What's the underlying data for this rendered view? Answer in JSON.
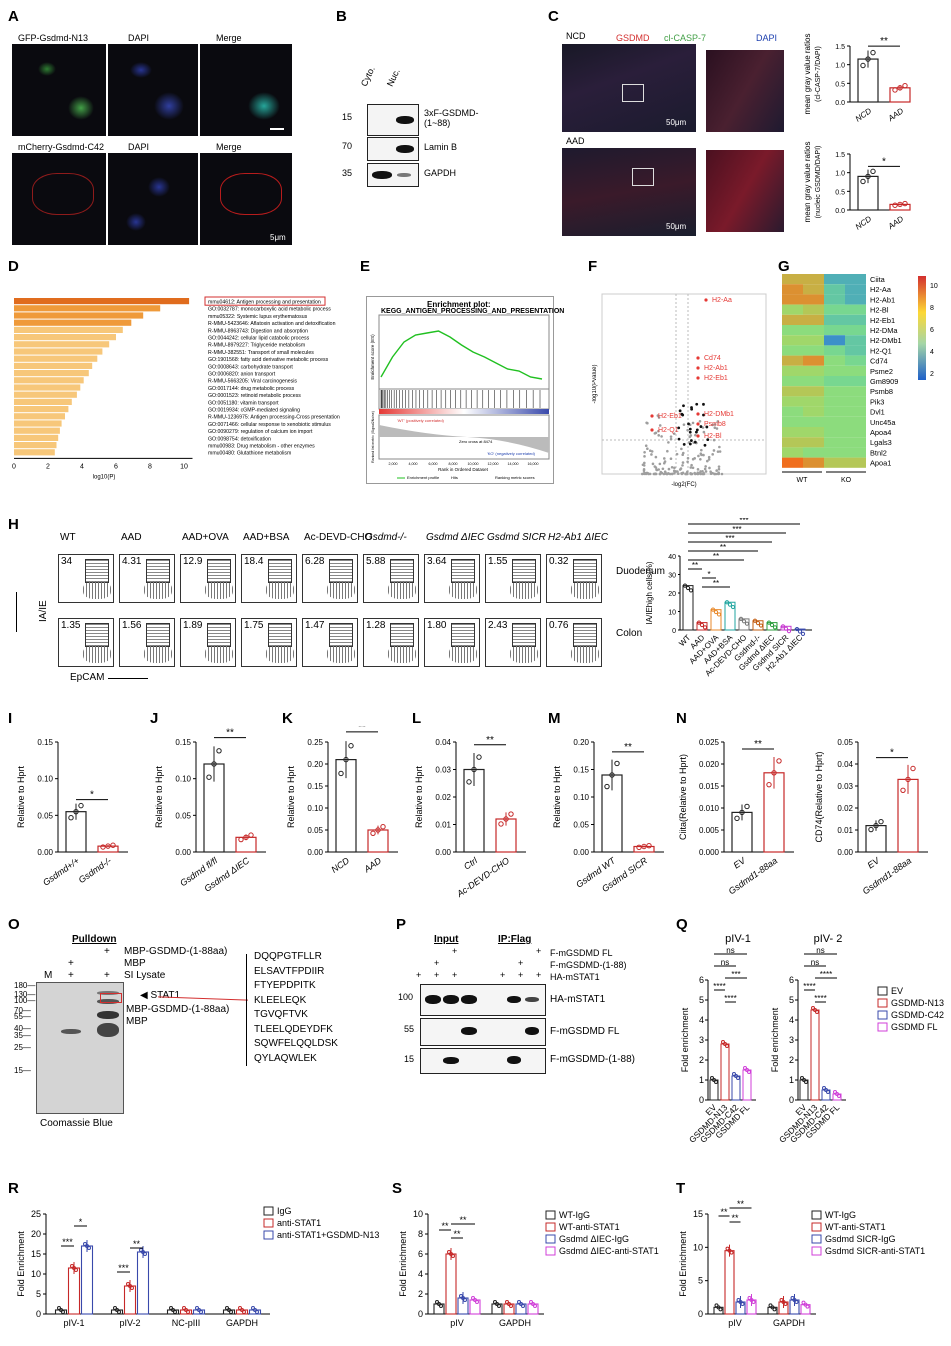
{
  "panels": {
    "A": "A",
    "B": "B",
    "C": "C",
    "D": "D",
    "E": "E",
    "F": "F",
    "G": "G",
    "H": "H",
    "I": "I",
    "J": "J",
    "K": "K",
    "L": "L",
    "M": "M",
    "N": "N",
    "O": "O",
    "P": "P",
    "Q": "Q",
    "R": "R",
    "S": "S",
    "T": "T"
  },
  "A": {
    "row1": [
      "GFP-Gsdmd-N13",
      "DAPI",
      "Merge"
    ],
    "row2": [
      "mCherry-Gsdmd-C42",
      "DAPI",
      "Merge"
    ],
    "scale": "5μm"
  },
  "B": {
    "lanes": [
      "Cyto.",
      "Nuc."
    ],
    "bands": [
      "3xF-GSDMD-\n(1~88)",
      "Lamin B",
      "GAPDH"
    ],
    "mw": [
      "15",
      "70",
      "35"
    ]
  },
  "C": {
    "ncd": "NCD",
    "aad": "AAD",
    "stains": [
      "GSDMD",
      "cl-CASP-7",
      "DAPI"
    ],
    "scale1": "50μm",
    "scale2": "50μm",
    "chart1": {
      "ylabel": "mean gray value ratios\n(cl-CASP-7/DAPI)",
      "yticks": [
        "0.0",
        "0.5",
        "1.0",
        "1.5"
      ],
      "cats": [
        "NCD",
        "AAD"
      ],
      "sig": "**"
    },
    "chart2": {
      "ylabel": "mean gray value ratios\n(nucleic GSDMD/DAPI)",
      "yticks": [
        "0.0",
        "0.5",
        "1.0",
        "1.5"
      ],
      "cats": [
        "NCD",
        "AAD"
      ],
      "sig": "*"
    }
  },
  "D": {
    "terms": [
      "mmu04612: Antigen processing and presentation",
      "GO:0032787: monocarboxylic acid metabolic process",
      "mmu05322: Systemic lupus erythematosus",
      "R-MMU-5423646: Aflatoxin activation and detoxification",
      "R-MMU-8963743: Digestion and absorption",
      "GO:0044242: cellular lipid catabolic process",
      "R-MMU-8979227: Triglyceride metabolism",
      "R-MMU-382551: Transport of small molecules",
      "GO:1901568: fatty acid derivative metabolic process",
      "GO:0008643: carbohydrate transport",
      "GO:0006820: anion transport",
      "R-MMU-5663205: Viral carcinogenesis",
      "GO:0017144: drug metabolic process",
      "GO:0001523: retinoid metabolic process",
      "GO:0051180: vitamin transport",
      "GO:0019934: cGMP-mediated signaling",
      "R-MMU-1236975: Antigen processing-Cross presentation",
      "GO:0071466: cellular response to xenobiotic stimulus",
      "GO:0090279: regulation of calcium ion import",
      "GO:0098754: detoxification",
      "mmu00983: Drug metabolism - other enzymes",
      "mmu00480: Glutathione metabolism"
    ],
    "xticks": [
      "0",
      "2",
      "4",
      "6",
      "8",
      "10"
    ],
    "xlabel": "log10(P)"
  },
  "E": {
    "title": "Enrichment plot:",
    "subtitle": "KEGG_ANTIGEN_PROCESSING_AND_PRESENTATION",
    "ylab1": "Enrichment score (ES)",
    "ylab2": "Ranked list metric (Signal2Noise)",
    "xlabel": "Rank in Ordered Dataset",
    "pos": "'WT' (positively correlated)",
    "neg": "'KO' (negatively correlated)",
    "zero": "Zero cross at 8474",
    "legend": [
      "Enrichment profile",
      "Hits",
      "Ranking metric scores"
    ],
    "xticks": [
      "2,000",
      "4,000",
      "6,000",
      "8,000",
      "10,000",
      "12,000",
      "14,000",
      "16,000"
    ]
  },
  "F": {
    "ylabel": "-log10(Pvalue)",
    "xlabel": "-log2(FC)",
    "genes": [
      "H2-Aa",
      "Cd74",
      "H2-Ab1",
      "H2-Eb1",
      "H2-DMb1",
      "Psmb8",
      "H2-Bl",
      "H2-Eb1",
      "H2-Q1"
    ]
  },
  "G": {
    "genes": [
      "Ciita",
      "H2-Aa",
      "H2-Ab1",
      "H2-Bl",
      "H2-Eb1",
      "H2-DMa",
      "H2-DMb1",
      "H2-Q1",
      "Cd74",
      "Psme2",
      "Gm8909",
      "Psmb8",
      "Pik3",
      "Dvl1",
      "Unc45a",
      "Apoa4",
      "Lgals3",
      "Btnl2",
      "Apoa1"
    ],
    "groups": [
      "WT",
      "KO"
    ],
    "scale": [
      "10",
      "8",
      "6",
      "4",
      "2"
    ]
  },
  "H": {
    "conds": [
      "WT",
      "AAD",
      "AAD+OVA",
      "AAD+BSA",
      "Ac-DEVD-CHO",
      "Gsdmd-/-",
      "Gsdmd ΔIEC",
      "Gsdmd SICR",
      "H2-Ab1 ΔIEC"
    ],
    "duo": [
      "34",
      "4.31",
      "12.9",
      "18.4",
      "6.28",
      "5.88",
      "3.64",
      "1.55",
      "0.32"
    ],
    "col": [
      "1.35",
      "1.56",
      "1.89",
      "1.75",
      "1.47",
      "1.28",
      "1.80",
      "2.43",
      "0.76"
    ],
    "tissue1": "Duodenum",
    "tissue2": "Colon",
    "ylab": "IA/IE",
    "xlab": "EpCAM",
    "chart": {
      "ylabel": "IA/IEhigh cells(%)",
      "yticks": [
        "0",
        "10",
        "20",
        "30",
        "40"
      ],
      "sigs": [
        "***",
        "***",
        "***",
        "**",
        "**",
        "**",
        "*",
        "**"
      ]
    }
  },
  "I": {
    "ylabel": "Relative to Hprt",
    "cats": [
      "Gsdmd+/+",
      "Gsdmd-/-"
    ],
    "yticks": [
      "0.00",
      "0.05",
      "0.10",
      "0.15"
    ],
    "sig": "*"
  },
  "J": {
    "ylabel": "Relative to Hprt",
    "cats": [
      "Gsdmd fl/fl",
      "Gsdmd ΔIEC"
    ],
    "yticks": [
      "0.00",
      "0.05",
      "0.10",
      "0.15"
    ],
    "sig": "**"
  },
  "K": {
    "ylabel": "Relative to Hprt",
    "cats": [
      "NCD",
      "AAD"
    ],
    "yticks": [
      "0.00",
      "0.05",
      "0.10",
      "0.15",
      "0.20",
      "0.25"
    ],
    "sig": "**"
  },
  "L": {
    "ylabel": "Relative to Hprt",
    "cats": [
      "Ctrl",
      "Ac-DEVD-CHO"
    ],
    "yticks": [
      "0.00",
      "0.01",
      "0.02",
      "0.03",
      "0.04"
    ],
    "sig": "**"
  },
  "M": {
    "ylabel": "Relative to Hprt",
    "cats": [
      "Gsdmd WT",
      "Gsdmd SICR"
    ],
    "yticks": [
      "0.00",
      "0.05",
      "0.10",
      "0.15",
      "0.20"
    ],
    "sig": "**"
  },
  "N": {
    "chart1": {
      "ylabel": "Ciita(Relative to Hprt)",
      "cats": [
        "EV",
        "Gsdmd1-88aa"
      ],
      "yticks": [
        "0.000",
        "0.005",
        "0.010",
        "0.015",
        "0.020",
        "0.025"
      ],
      "sig": "**"
    },
    "chart2": {
      "ylabel": "CD74(Relative to Hprt)",
      "cats": [
        "EV",
        "Gsdmd1-88aa"
      ],
      "yticks": [
        "0.00",
        "0.01",
        "0.02",
        "0.03",
        "0.04",
        "0.05"
      ],
      "sig": "*"
    }
  },
  "O": {
    "header": "Pulldown",
    "rows": [
      "MBP-GSDMD-(1-88aa)",
      "MBP",
      "SI Lysate"
    ],
    "mw": [
      "180",
      "130",
      "100",
      "70",
      "55",
      "40",
      "35",
      "25",
      "15"
    ],
    "lane_m": "M",
    "bands": [
      "STAT1",
      "MBP-GSDMD-(1-88aa)",
      "MBP"
    ],
    "peptides": [
      "DQQPGTFLLR",
      "ELSAVTFPDIIR",
      "FTYEPDPITK",
      "KLEELEQK",
      "TGVQFTVK",
      "TLEELQDEYDFK",
      "SQWFELQQLDSK",
      "QYLAQWLEK"
    ],
    "footer": "Coomassie Blue"
  },
  "P": {
    "input": "Input",
    "ip": "IP:Flag",
    "rows": [
      "F-mGSDMD FL",
      "F-mGSDMD-(1-88)",
      "HA-mSTAT1"
    ],
    "bands": [
      "HA-mSTAT1",
      "F-mGSDMD FL",
      "F-mGSDMD-(1-88)"
    ],
    "mw": [
      "100",
      "55",
      "15"
    ]
  },
  "Q": {
    "titles": [
      "pIV-1",
      "pIV- 2"
    ],
    "ylabel": "Fold enrichment",
    "cats": [
      "EV",
      "GSDMD-N13",
      "GSDMD-C42",
      "GSDMD FL"
    ],
    "legend": [
      "EV",
      "GSDMD-N13",
      "GSDMD-C42",
      "GSDMD FL"
    ],
    "yticks1": [
      "0",
      "1",
      "2",
      "3",
      "4",
      "5",
      "6"
    ],
    "yticks2": [
      "0",
      "1",
      "2",
      "3",
      "4",
      "5",
      "6"
    ],
    "sigs": [
      "ns",
      "ns",
      "***",
      "****",
      "****",
      "ns",
      "ns",
      "****",
      "****",
      "****"
    ]
  },
  "R": {
    "ylabel": "Fold Enrichment",
    "cats": [
      "pIV-1",
      "pIV-2",
      "NC-pIII",
      "GAPDH"
    ],
    "legend": [
      "IgG",
      "anti-STAT1",
      "anti-STAT1+GSDMD-N13"
    ],
    "yticks": [
      "0",
      "5",
      "10",
      "15",
      "20",
      "25"
    ],
    "sigs": [
      "***",
      "*",
      "***",
      "**"
    ]
  },
  "S": {
    "ylabel": "Fold Enrichment",
    "cats": [
      "pIV",
      "GAPDH"
    ],
    "legend": [
      "WT-IgG",
      "WT-anti-STAT1",
      "Gsdmd ΔIEC-IgG",
      "Gsdmd ΔIEC-anti-STAT1"
    ],
    "yticks": [
      "0",
      "2",
      "4",
      "6",
      "8",
      "10"
    ],
    "sigs": [
      "**",
      "**",
      "**"
    ]
  },
  "T": {
    "ylabel": "Fold Enrichment",
    "cats": [
      "pIV",
      "GAPDH"
    ],
    "legend": [
      "WT-IgG",
      "WT-anti-STAT1",
      "Gsdmd SICR-IgG",
      "Gsdmd SICR-anti-STAT1"
    ],
    "yticks": [
      "0",
      "5",
      "10",
      "15"
    ],
    "sigs": [
      "**",
      "**",
      "**"
    ]
  },
  "colors": {
    "ctrl": "#222222",
    "red": "#c62828",
    "blue": "#3949ab",
    "magenta": "#d03fd8",
    "orange": "#e8892b"
  },
  "chart_data": [
    {
      "type": "bar",
      "panel": "I",
      "categories": [
        "Gsdmd+/+",
        "Gsdmd-/-"
      ],
      "values": [
        0.055,
        0.008
      ],
      "ylim": [
        0,
        0.15
      ]
    },
    {
      "type": "bar",
      "panel": "J",
      "categories": [
        "Gsdmd fl/fl",
        "Gsdmd ΔIEC"
      ],
      "values": [
        0.12,
        0.02
      ],
      "ylim": [
        0,
        0.15
      ]
    },
    {
      "type": "bar",
      "panel": "K",
      "categories": [
        "NCD",
        "AAD"
      ],
      "values": [
        0.21,
        0.05
      ],
      "ylim": [
        0,
        0.25
      ]
    },
    {
      "type": "bar",
      "panel": "L",
      "categories": [
        "Ctrl",
        "Ac-DEVD-CHO"
      ],
      "values": [
        0.03,
        0.012
      ],
      "ylim": [
        0,
        0.04
      ]
    },
    {
      "type": "bar",
      "panel": "M",
      "categories": [
        "Gsdmd WT",
        "Gsdmd SICR"
      ],
      "values": [
        0.14,
        0.01
      ],
      "ylim": [
        0,
        0.2
      ]
    },
    {
      "type": "bar",
      "panel": "N1",
      "categories": [
        "EV",
        "Gsdmd1-88aa"
      ],
      "values": [
        0.009,
        0.018
      ],
      "ylim": [
        0,
        0.025
      ]
    },
    {
      "type": "bar",
      "panel": "N2",
      "categories": [
        "EV",
        "Gsdmd1-88aa"
      ],
      "values": [
        0.012,
        0.033
      ],
      "ylim": [
        0,
        0.05
      ]
    },
    {
      "type": "bar",
      "panel": "C1",
      "categories": [
        "NCD",
        "AAD"
      ],
      "values": [
        1.15,
        0.38
      ],
      "ylim": [
        0,
        1.5
      ]
    },
    {
      "type": "bar",
      "panel": "C2",
      "categories": [
        "NCD",
        "AAD"
      ],
      "values": [
        0.9,
        0.15
      ],
      "ylim": [
        0,
        1.5
      ]
    },
    {
      "type": "bar",
      "panel": "H",
      "categories": [
        "WT",
        "AAD",
        "AAD+OVA",
        "AAD+BSA",
        "Ac-DEVD-CHO",
        "Gsdmd-/-",
        "Gsdmd ΔIEC",
        "Gsdmd SICR",
        "H2-Ab1 ΔIEC"
      ],
      "values": [
        24,
        4,
        11,
        15,
        6,
        5,
        4,
        2,
        0.5
      ],
      "ylim": [
        0,
        40
      ]
    },
    {
      "type": "bar",
      "panel": "Q1",
      "categories": [
        "EV",
        "GSDMD-N13",
        "GSDMD-C42",
        "GSDMD FL"
      ],
      "values": [
        1,
        2.8,
        1.2,
        1.5
      ],
      "ylim": [
        0,
        6
      ]
    },
    {
      "type": "bar",
      "panel": "Q2",
      "categories": [
        "EV",
        "GSDMD-N13",
        "GSDMD-C42",
        "GSDMD FL"
      ],
      "values": [
        1,
        4.5,
        0.5,
        0.3
      ],
      "ylim": [
        0,
        6
      ]
    },
    {
      "type": "bar",
      "panel": "R",
      "categories": [
        "pIV-1",
        "pIV-2",
        "NC-pIII",
        "GAPDH"
      ],
      "series": [
        {
          "name": "IgG",
          "values": [
            1,
            1,
            1,
            1
          ]
        },
        {
          "name": "anti-STAT1",
          "values": [
            11.5,
            7,
            1,
            1
          ]
        },
        {
          "name": "anti-STAT1+GSDMD-N13",
          "values": [
            17,
            15.5,
            1,
            1
          ]
        }
      ],
      "ylim": [
        0,
        25
      ]
    },
    {
      "type": "bar",
      "panel": "S",
      "categories": [
        "pIV",
        "GAPDH"
      ],
      "series": [
        {
          "name": "WT-IgG",
          "values": [
            1,
            1
          ]
        },
        {
          "name": "WT-anti-STAT1",
          "values": [
            6,
            1
          ]
        },
        {
          "name": "Gsdmd ΔIEC-IgG",
          "values": [
            1.6,
            1
          ]
        },
        {
          "name": "Gsdmd ΔIEC-anti-STAT1",
          "values": [
            1.4,
            1
          ]
        }
      ],
      "ylim": [
        0,
        10
      ]
    },
    {
      "type": "bar",
      "panel": "T",
      "categories": [
        "pIV",
        "GAPDH"
      ],
      "series": [
        {
          "name": "WT-IgG",
          "values": [
            1,
            1
          ]
        },
        {
          "name": "WT-anti-STAT1",
          "values": [
            9.5,
            1.8
          ]
        },
        {
          "name": "Gsdmd SICR-IgG",
          "values": [
            1.8,
            2.1
          ]
        },
        {
          "name": "Gsdmd SICR-anti-STAT1",
          "values": [
            2.1,
            1.4
          ]
        }
      ],
      "ylim": [
        0,
        15
      ]
    }
  ]
}
